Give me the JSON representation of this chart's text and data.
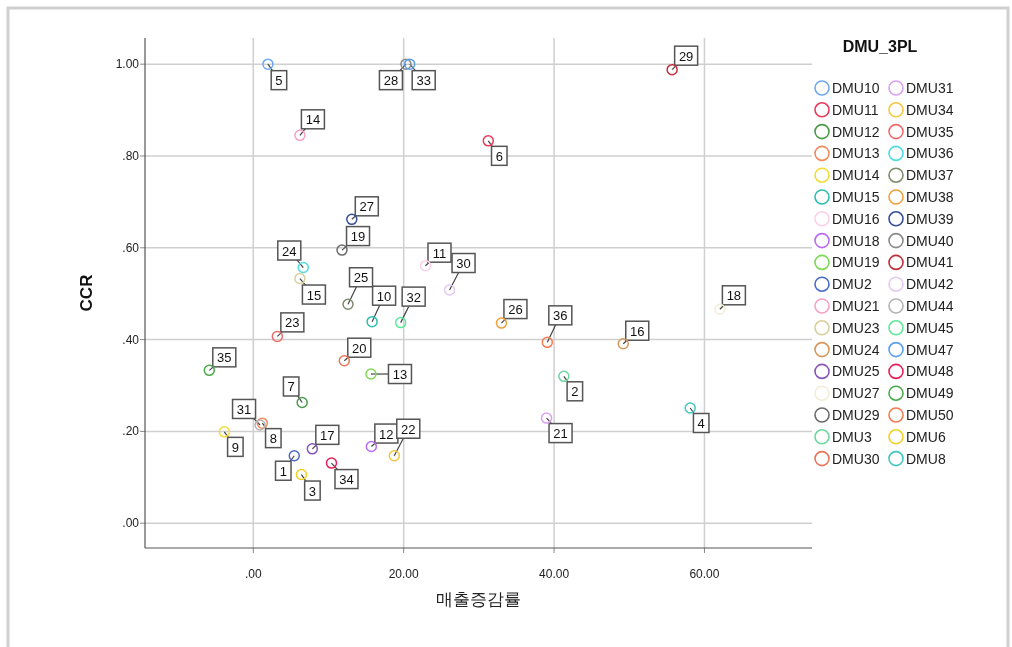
{
  "chart_data": {
    "type": "scatter",
    "xlabel": "매출증감률",
    "ylabel": "CCR",
    "legend_title": "DMU_3PL",
    "xlim": [
      -14.4,
      74.3
    ],
    "ylim": [
      -0.054,
      1.057
    ],
    "xticks": [
      {
        "value": 0,
        "label": ".00"
      },
      {
        "value": 20,
        "label": "20.00"
      },
      {
        "value": 40,
        "label": "40.00"
      },
      {
        "value": 60,
        "label": "60.00"
      }
    ],
    "yticks": [
      {
        "value": 0,
        "label": ".00"
      },
      {
        "value": 0.2,
        "label": ".20"
      },
      {
        "value": 0.4,
        "label": ".40"
      },
      {
        "value": 0.6,
        "label": ".60"
      },
      {
        "value": 0.8,
        "label": ".80"
      },
      {
        "value": 1.0,
        "label": "1.00"
      }
    ],
    "grid": true,
    "legend": "right",
    "marker": "circle",
    "series": [
      {
        "name": "DMU10",
        "color": "#6fa8f0",
        "x": [
          1.95
        ],
        "values": [
          1.0
        ]
      },
      {
        "name": "DMU11",
        "color": "#e8395a",
        "x": [
          31.25
        ],
        "values": [
          0.833
        ]
      },
      {
        "name": "DMU12",
        "color": "#4e9a4a",
        "x": [
          6.5
        ],
        "values": [
          0.263
        ]
      },
      {
        "name": "DMU13",
        "color": "#f08a5d",
        "x": [
          1.2
        ],
        "values": [
          0.218
        ]
      },
      {
        "name": "DMU14",
        "color": "#f2dc3a",
        "x": [
          -3.85
        ],
        "values": [
          0.199
        ]
      },
      {
        "name": "DMU15",
        "color": "#2bbfae",
        "x": [
          15.8
        ],
        "values": [
          0.439
        ]
      },
      {
        "name": "DMU16",
        "color": "#fdd0e8",
        "x": [
          22.9
        ],
        "values": [
          0.561
        ]
      },
      {
        "name": "DMU18",
        "color": "#b86cf5",
        "x": [
          15.7
        ],
        "values": [
          0.167
        ]
      },
      {
        "name": "DMU19",
        "color": "#7ed957",
        "x": [
          15.65
        ],
        "values": [
          0.325
        ]
      },
      {
        "name": "DMU2",
        "color": "#4a6ac8",
        "x": [
          5.45
        ],
        "values": [
          0.147
        ]
      },
      {
        "name": "DMU21",
        "color": "#f7a1c4",
        "x": [
          6.2
        ],
        "values": [
          0.845
        ]
      },
      {
        "name": "DMU23",
        "color": "#d9cf9c",
        "x": [
          6.2
        ],
        "values": [
          0.533
        ]
      },
      {
        "name": "DMU24",
        "color": "#d9975a",
        "x": [
          49.2
        ],
        "values": [
          0.391
        ]
      },
      {
        "name": "DMU25",
        "color": "#8656b8",
        "x": [
          7.85
        ],
        "values": [
          0.162
        ]
      },
      {
        "name": "DMU27",
        "color": "#f3ecd6",
        "x": [
          62.05
        ],
        "values": [
          0.466
        ]
      },
      {
        "name": "DMU29",
        "color": "#6b6b6b",
        "x": [
          11.8
        ],
        "values": [
          0.595
        ]
      },
      {
        "name": "DMU3",
        "color": "#6fd6a0",
        "x": [
          41.3
        ],
        "values": [
          0.32
        ]
      },
      {
        "name": "DMU30",
        "color": "#e8765a",
        "x": [
          12.1
        ],
        "values": [
          0.354
        ]
      },
      {
        "name": "DMU31",
        "color": "#d9a0f0",
        "x": [
          39.0
        ],
        "values": [
          0.229
        ]
      },
      {
        "name": "DMU34",
        "color": "#f5c842",
        "x": [
          18.75
        ],
        "values": [
          0.147
        ]
      },
      {
        "name": "DMU35",
        "color": "#f06b6b",
        "x": [
          3.2
        ],
        "values": [
          0.407
        ]
      },
      {
        "name": "DMU36",
        "color": "#4fdde0",
        "x": [
          6.65
        ],
        "values": [
          0.557
        ]
      },
      {
        "name": "DMU37",
        "color": "#7b8c6a",
        "x": [
          12.6
        ],
        "values": [
          0.477
        ]
      },
      {
        "name": "DMU38",
        "color": "#f2a03c",
        "x": [
          33.0
        ],
        "values": [
          0.436
        ]
      },
      {
        "name": "DMU39",
        "color": "#344e9c",
        "x": [
          13.1
        ],
        "values": [
          0.662
        ]
      },
      {
        "name": "DMU40",
        "color": "#8a8a8a",
        "x": [
          20.3
        ],
        "values": [
          1.0
        ]
      },
      {
        "name": "DMU41",
        "color": "#c0303a",
        "x": [
          55.7
        ],
        "values": [
          0.988
        ]
      },
      {
        "name": "DMU42",
        "color": "#e6c8f5",
        "x": [
          26.1
        ],
        "values": [
          0.508
        ]
      },
      {
        "name": "DMU44",
        "color": "#b4b4b4",
        "x": [
          0.9
        ],
        "values": [
          0.214
        ]
      },
      {
        "name": "DMU45",
        "color": "#5ee89a",
        "x": [
          19.6
        ],
        "values": [
          0.437
        ]
      },
      {
        "name": "DMU47",
        "color": "#5aa0f0",
        "x": [
          20.8
        ],
        "values": [
          1.0
        ]
      },
      {
        "name": "DMU48",
        "color": "#e8205a",
        "x": [
          10.4
        ],
        "values": [
          0.131
        ]
      },
      {
        "name": "DMU49",
        "color": "#4aaa4a",
        "x": [
          -5.85
        ],
        "values": [
          0.333
        ]
      },
      {
        "name": "DMU50",
        "color": "#f57a50",
        "x": [
          39.1
        ],
        "values": [
          0.394
        ]
      },
      {
        "name": "DMU6",
        "color": "#f5d020",
        "x": [
          6.4
        ],
        "values": [
          0.106
        ]
      },
      {
        "name": "DMU8",
        "color": "#40c8c0",
        "x": [
          58.1
        ],
        "values": [
          0.251
        ]
      }
    ],
    "annotations": [
      {
        "text": "1",
        "x": 5.45,
        "y": 0.147
      },
      {
        "text": "2",
        "x": 41.3,
        "y": 0.32
      },
      {
        "text": "3",
        "x": 6.4,
        "y": 0.106
      },
      {
        "text": "4",
        "x": 58.1,
        "y": 0.251
      },
      {
        "text": "5",
        "x": 1.95,
        "y": 1.0
      },
      {
        "text": "6",
        "x": 31.25,
        "y": 0.833
      },
      {
        "text": "7",
        "x": 6.5,
        "y": 0.263
      },
      {
        "text": "8",
        "x": 1.2,
        "y": 0.218
      },
      {
        "text": "9",
        "x": -3.85,
        "y": 0.199
      },
      {
        "text": "10",
        "x": 15.8,
        "y": 0.439
      },
      {
        "text": "11",
        "x": 22.9,
        "y": 0.561
      },
      {
        "text": "12",
        "x": 15.7,
        "y": 0.167
      },
      {
        "text": "13",
        "x": 15.65,
        "y": 0.325
      },
      {
        "text": "14",
        "x": 6.2,
        "y": 0.845
      },
      {
        "text": "15",
        "x": 6.2,
        "y": 0.533
      },
      {
        "text": "16",
        "x": 49.2,
        "y": 0.391
      },
      {
        "text": "17",
        "x": 7.85,
        "y": 0.162
      },
      {
        "text": "18",
        "x": 62.05,
        "y": 0.466
      },
      {
        "text": "19",
        "x": 11.8,
        "y": 0.595
      },
      {
        "text": "20",
        "x": 12.1,
        "y": 0.354
      },
      {
        "text": "21",
        "x": 39.0,
        "y": 0.229
      },
      {
        "text": "22",
        "x": 18.75,
        "y": 0.147
      },
      {
        "text": "23",
        "x": 3.2,
        "y": 0.407
      },
      {
        "text": "24",
        "x": 6.65,
        "y": 0.557
      },
      {
        "text": "25",
        "x": 12.6,
        "y": 0.477
      },
      {
        "text": "26",
        "x": 33.0,
        "y": 0.436
      },
      {
        "text": "27",
        "x": 13.1,
        "y": 0.662
      },
      {
        "text": "28",
        "x": 20.3,
        "y": 1.0
      },
      {
        "text": "29",
        "x": 55.7,
        "y": 0.988
      },
      {
        "text": "30",
        "x": 26.1,
        "y": 0.508
      },
      {
        "text": "31",
        "x": 0.9,
        "y": 0.214
      },
      {
        "text": "32",
        "x": 19.6,
        "y": 0.437
      },
      {
        "text": "33",
        "x": 20.8,
        "y": 1.0
      },
      {
        "text": "34",
        "x": 10.4,
        "y": 0.131
      },
      {
        "text": "35",
        "x": -5.85,
        "y": 0.333
      },
      {
        "text": "36",
        "x": 39.1,
        "y": 0.394
      }
    ]
  }
}
